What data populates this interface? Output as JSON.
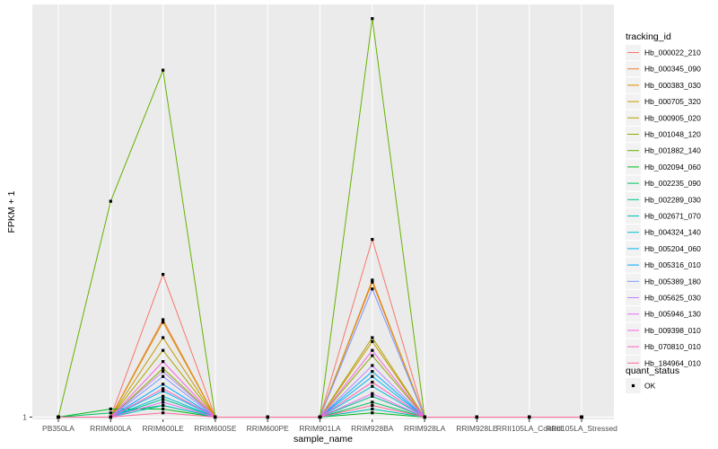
{
  "chart_data": {
    "type": "line",
    "title": "",
    "xlabel": "sample_name",
    "ylabel": "FPKM + 1",
    "x": [
      "PB350LA",
      "RRIM600LA",
      "RRIM600LE",
      "RRIM600SE",
      "RRIM600PE",
      "RRIM901LA",
      "RRIM928BA",
      "RRIM928LA",
      "RRIM928LE",
      "RRII105LA_Control",
      "RRII105LA_Stressed"
    ],
    "y_ticks": [
      "1"
    ],
    "y_scale": "log10",
    "ylim": [
      0.95,
      11000
    ],
    "grid": true,
    "legend_placement": "right",
    "legend_title": "tracking_id",
    "series": [
      {
        "name": "Hb_000022_210",
        "color": "#F8766D",
        "values": [
          1,
          1,
          25,
          1,
          1,
          1,
          55,
          1,
          1,
          1,
          1
        ]
      },
      {
        "name": "Hb_000345_090",
        "color": "#EC8239",
        "values": [
          1,
          1,
          9,
          1,
          1,
          1,
          21,
          1,
          1,
          1,
          1
        ]
      },
      {
        "name": "Hb_000383_030",
        "color": "#DB8E00",
        "values": [
          1,
          1,
          8.5,
          1,
          1,
          1,
          22,
          1,
          1,
          1,
          1
        ]
      },
      {
        "name": "Hb_000705_320",
        "color": "#C79800",
        "values": [
          1,
          1,
          6,
          1,
          1,
          1,
          5.5,
          1,
          1,
          1,
          1
        ]
      },
      {
        "name": "Hb_000905_020",
        "color": "#AEA200",
        "values": [
          1,
          1,
          4.5,
          1,
          1,
          1,
          6,
          1,
          1,
          1,
          1
        ]
      },
      {
        "name": "Hb_001048_120",
        "color": "#8FAA00",
        "values": [
          1,
          1,
          3,
          1,
          1,
          1,
          4,
          1,
          1,
          1,
          1
        ]
      },
      {
        "name": "Hb_001882_140",
        "color": "#64B200",
        "values": [
          1,
          130,
          2500,
          1,
          1,
          1,
          8000,
          1,
          1,
          1,
          1
        ]
      },
      {
        "name": "Hb_002094_060",
        "color": "#00B81B",
        "values": [
          1,
          1.2,
          1.2,
          1,
          1,
          1,
          1.1,
          1,
          1,
          1,
          1
        ]
      },
      {
        "name": "Hb_002235_090",
        "color": "#00BD5C",
        "values": [
          1,
          1.1,
          1.3,
          1,
          1,
          1,
          1.4,
          1,
          1,
          1,
          1
        ]
      },
      {
        "name": "Hb_002289_030",
        "color": "#00C08E",
        "values": [
          1,
          1,
          1.5,
          1,
          1,
          1,
          1.6,
          1,
          1,
          1,
          1
        ]
      },
      {
        "name": "Hb_002671_070",
        "color": "#00C1B7",
        "values": [
          1,
          1,
          1.3,
          1,
          1,
          1,
          1.2,
          1,
          1,
          1,
          1
        ]
      },
      {
        "name": "Hb_004324_140",
        "color": "#00BDD4",
        "values": [
          1,
          1,
          1.6,
          1,
          1,
          1,
          2,
          1,
          1,
          1,
          1
        ]
      },
      {
        "name": "Hb_005204_060",
        "color": "#00B5EE",
        "values": [
          1,
          1,
          1.8,
          1,
          1,
          1,
          2.5,
          1,
          1,
          1,
          1
        ]
      },
      {
        "name": "Hb_005316_010",
        "color": "#00A7FF",
        "values": [
          1,
          1,
          2.1,
          1,
          1,
          1,
          2.8,
          1,
          1,
          1,
          1
        ]
      },
      {
        "name": "Hb_005389_180",
        "color": "#7F96FF",
        "values": [
          1,
          1,
          2.5,
          1,
          1,
          1,
          18,
          1,
          1,
          1,
          1
        ]
      },
      {
        "name": "Hb_005625_030",
        "color": "#BC81FF",
        "values": [
          1,
          1,
          2.8,
          1,
          1,
          1,
          3.2,
          1,
          1,
          1,
          1
        ]
      },
      {
        "name": "Hb_005946_130",
        "color": "#E26EF7",
        "values": [
          1,
          1,
          1.4,
          1,
          1,
          1,
          1.7,
          1,
          1,
          1,
          1
        ]
      },
      {
        "name": "Hb_009398_010",
        "color": "#F863DF",
        "values": [
          1,
          1,
          3.5,
          1,
          1,
          1,
          4.5,
          1,
          1,
          1,
          1
        ]
      },
      {
        "name": "Hb_070810_010",
        "color": "#FF62BF",
        "values": [
          1,
          1,
          1.9,
          1,
          1,
          1,
          2.2,
          1,
          1,
          1,
          1
        ]
      },
      {
        "name": "Hb_184964_010",
        "color": "#FF6A9A",
        "values": [
          1,
          1,
          1.1,
          1,
          1,
          1,
          1.3,
          1,
          1,
          1,
          1
        ]
      }
    ],
    "shape_legend": {
      "title": "quant_status",
      "items": [
        {
          "label": "OK",
          "shape": "square"
        }
      ]
    },
    "panel_background": "#EBEBEB",
    "grid_color": "#FFFFFF"
  }
}
